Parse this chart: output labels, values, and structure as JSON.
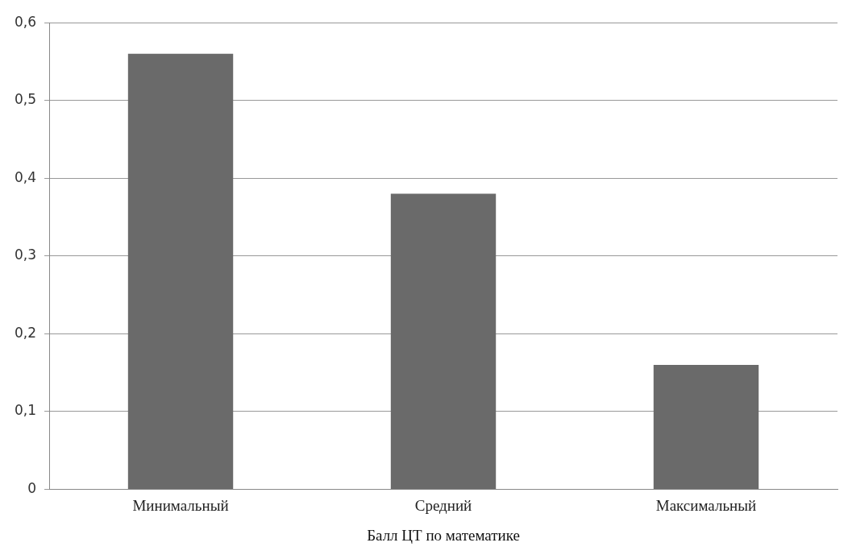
{
  "chart_data": {
    "type": "bar",
    "xlabel": "Балл ЦТ по математике",
    "categories": [
      "Минимальный",
      "Средний",
      "Максимальный"
    ],
    "values": [
      0.56,
      0.38,
      0.16
    ],
    "color": "#6a6a6a",
    "ylim": [
      0,
      0.6
    ],
    "yticks": [
      0,
      {
        "value": 0.1,
        "label": "0,1"
      },
      {
        "value": 0.2,
        "label": "0,2"
      },
      {
        "value": 0.3,
        "label": "0,3"
      },
      {
        "value": 0.4,
        "label": "0,4"
      },
      {
        "value": 0.5,
        "label": "0,5"
      },
      {
        "value": 0.6,
        "label": "0,6"
      }
    ],
    "grid": "y",
    "legend": false
  }
}
